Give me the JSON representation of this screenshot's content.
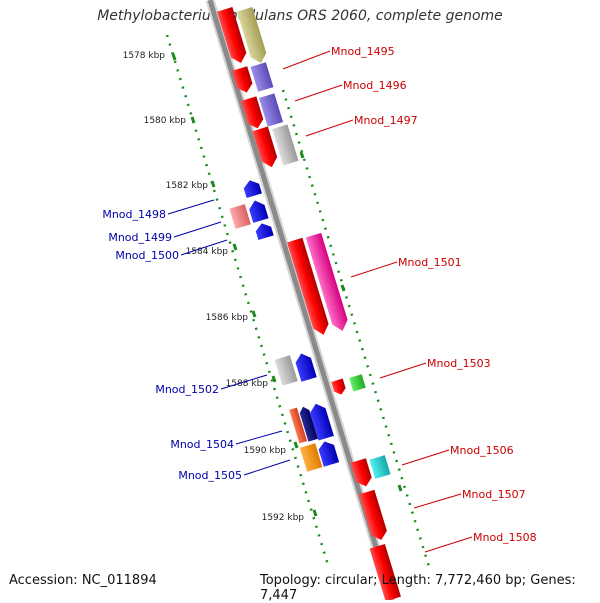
{
  "title": "Methylobacterium nodulans ORS 2060, complete genome",
  "footer": {
    "accession": "Accession: NC_011894",
    "topology": "Topology: circular; Length: 7,772,460 bp; Genes: 7,447"
  },
  "colors": {
    "backbone": "#8a8a8a",
    "ruler": "#1d8a1d",
    "forward_label": "#cc0000",
    "reverse_label": "#0000aa"
  },
  "ticks": [
    "1578 kbp",
    "1580 kbp",
    "1582 kbp",
    "1584 kbp",
    "1586 kbp",
    "1588 kbp",
    "1590 kbp",
    "1592 kbp"
  ],
  "gene_labels": {
    "forward": [
      "Mnod_1495",
      "Mnod_1496",
      "Mnod_1497",
      "Mnod_1501",
      "Mnod_1503",
      "Mnod_1506",
      "Mnod_1507",
      "Mnod_1508"
    ],
    "reverse": [
      "Mnod_1498",
      "Mnod_1499",
      "Mnod_1500",
      "Mnod_1502",
      "Mnod_1504",
      "Mnod_1505"
    ]
  }
}
